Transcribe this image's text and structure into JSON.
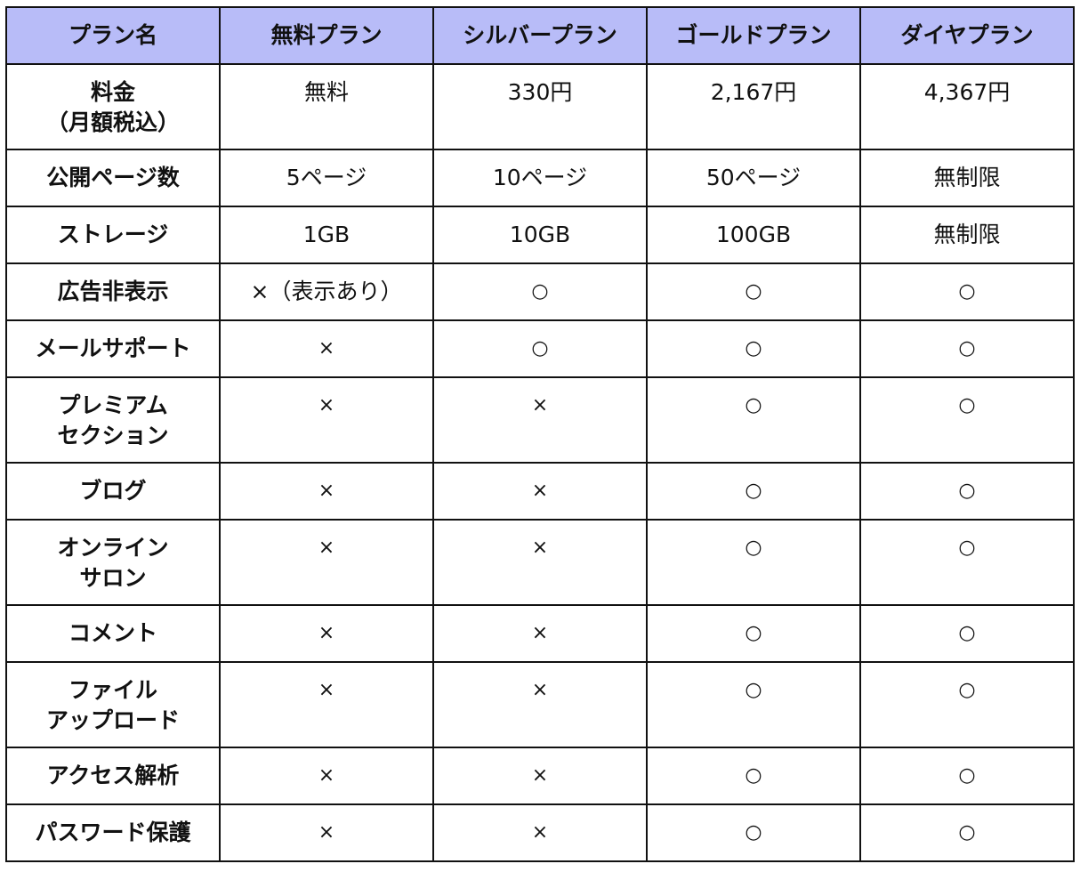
{
  "table": {
    "headers": [
      "プラン名",
      "無料プラン",
      "シルバープラン",
      "ゴールドプラン",
      "ダイヤプラン"
    ],
    "header_color": "#b8bcf8",
    "rows": [
      {
        "label": "料金\n（月額税込）",
        "values": [
          "無料",
          "330円",
          "2,167円",
          "4,367円"
        ]
      },
      {
        "label": "公開ページ数",
        "values": [
          "5ページ",
          "10ページ",
          "50ページ",
          "無制限"
        ]
      },
      {
        "label": "ストレージ",
        "values": [
          "1GB",
          "10GB",
          "100GB",
          "無制限"
        ]
      },
      {
        "label": "広告非表示",
        "values": [
          "×（表示あり）",
          "○",
          "○",
          "○"
        ]
      },
      {
        "label": "メールサポート",
        "values": [
          "×",
          "○",
          "○",
          "○"
        ]
      },
      {
        "label": "プレミアム\nセクション",
        "values": [
          "×",
          "×",
          "○",
          "○"
        ]
      },
      {
        "label": "ブログ",
        "values": [
          "×",
          "×",
          "○",
          "○"
        ]
      },
      {
        "label": "オンライン\nサロン",
        "values": [
          "×",
          "×",
          "○",
          "○"
        ]
      },
      {
        "label": "コメント",
        "values": [
          "×",
          "×",
          "○",
          "○"
        ]
      },
      {
        "label": "ファイル\nアップロード",
        "values": [
          "×",
          "×",
          "○",
          "○"
        ]
      },
      {
        "label": "アクセス解析",
        "values": [
          "×",
          "×",
          "○",
          "○"
        ]
      },
      {
        "label": "パスワード保護",
        "values": [
          "×",
          "×",
          "○",
          "○"
        ]
      }
    ]
  }
}
